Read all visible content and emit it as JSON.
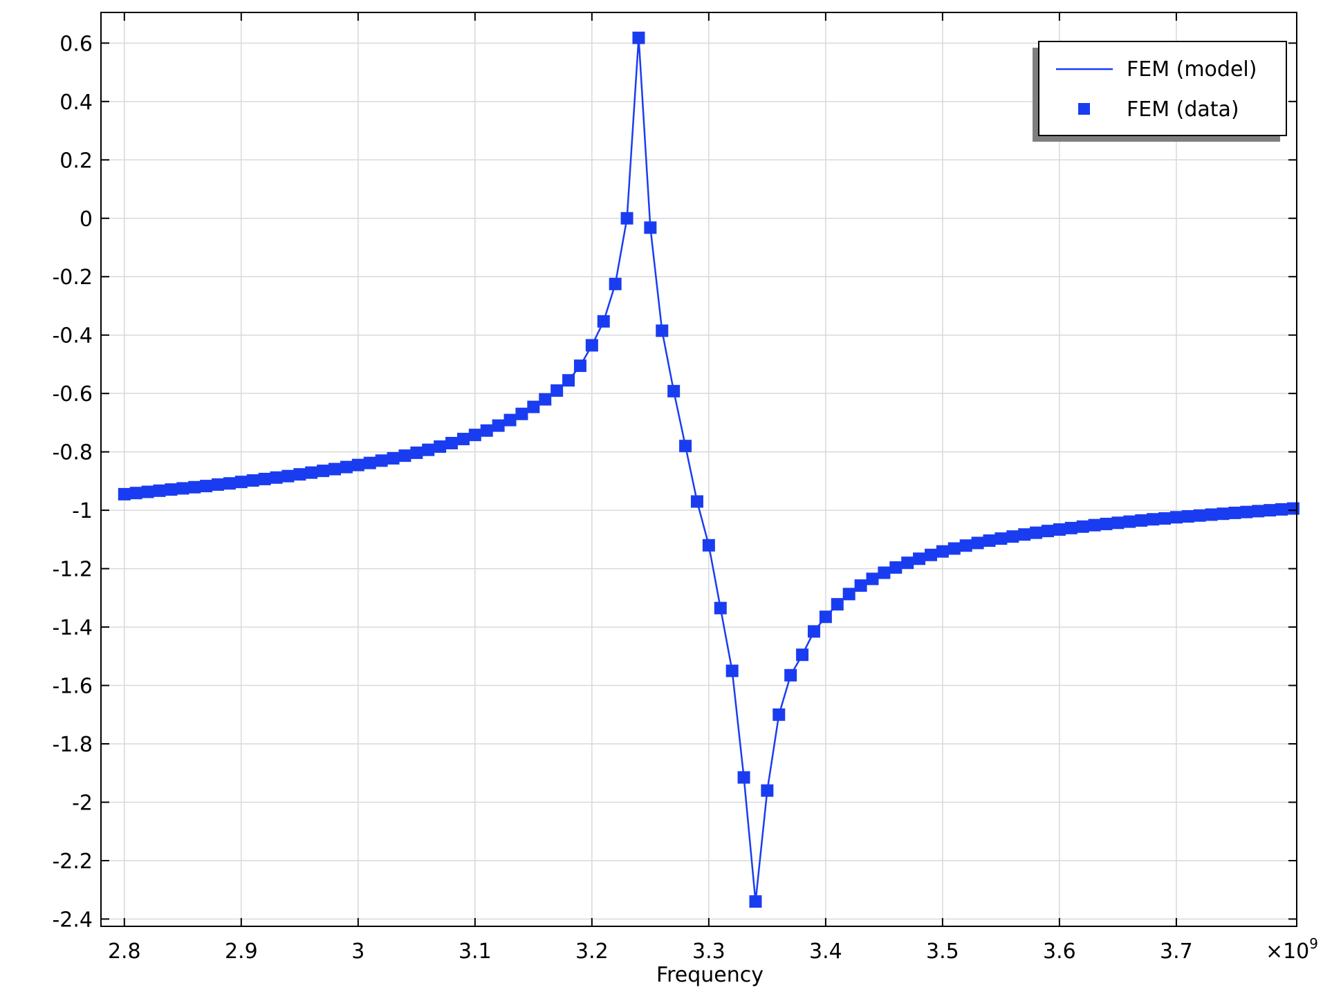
{
  "chart_data": {
    "type": "line",
    "title": "",
    "xlabel": "Frequency",
    "ylabel": "",
    "x_multiplier_label": "×10",
    "x_multiplier_exponent": "9",
    "xlim": [
      2.78,
      3.803
    ],
    "ylim": [
      -2.425,
      0.705
    ],
    "grid": true,
    "legend_position": "top-right",
    "x_ticks": [
      2.8,
      2.9,
      3.0,
      3.1,
      3.2,
      3.3,
      3.4,
      3.5,
      3.6,
      3.7
    ],
    "x_tick_labels": [
      "2.8",
      "2.9",
      "3",
      "3.1",
      "3.2",
      "3.3",
      "3.4",
      "3.5",
      "3.6",
      "3.7"
    ],
    "y_ticks": [
      0.6,
      0.4,
      0.2,
      0,
      -0.2,
      -0.4,
      -0.6,
      -0.8,
      -1,
      -1.2,
      -1.4,
      -1.6,
      -1.8,
      -2,
      -2.2,
      -2.4
    ],
    "y_tick_labels": [
      "0.6",
      "0.4",
      "0.2",
      "0",
      "-0.2",
      "-0.4",
      "-0.6",
      "-0.8",
      "-1",
      "-1.2",
      "-1.4",
      "-1.6",
      "-1.8",
      "-2",
      "-2.2",
      "-2.4"
    ],
    "colors": {
      "series": "#1a3cf0",
      "grid": "#d9d9d9",
      "axis": "#000000",
      "legend_shadow": "#7f7f7f"
    },
    "series": [
      {
        "name": "FEM (model)",
        "style": "line"
      },
      {
        "name": "FEM (data)",
        "style": "square-markers"
      }
    ],
    "x": [
      2.8,
      2.81,
      2.82,
      2.83,
      2.84,
      2.85,
      2.86,
      2.87,
      2.88,
      2.89,
      2.9,
      2.91,
      2.92,
      2.93,
      2.94,
      2.95,
      2.96,
      2.97,
      2.98,
      2.99,
      3.0,
      3.01,
      3.02,
      3.03,
      3.04,
      3.05,
      3.06,
      3.07,
      3.08,
      3.09,
      3.1,
      3.11,
      3.12,
      3.13,
      3.14,
      3.15,
      3.16,
      3.17,
      3.18,
      3.19,
      3.2,
      3.21,
      3.22,
      3.23,
      3.24,
      3.25,
      3.26,
      3.27,
      3.28,
      3.29,
      3.3,
      3.31,
      3.32,
      3.33,
      3.34,
      3.35,
      3.36,
      3.37,
      3.38,
      3.39,
      3.4,
      3.41,
      3.42,
      3.43,
      3.44,
      3.45,
      3.46,
      3.47,
      3.48,
      3.49,
      3.5,
      3.51,
      3.52,
      3.53,
      3.54,
      3.55,
      3.56,
      3.57,
      3.58,
      3.59,
      3.6,
      3.61,
      3.62,
      3.63,
      3.64,
      3.65,
      3.66,
      3.67,
      3.68,
      3.69,
      3.7,
      3.71,
      3.72,
      3.73,
      3.74,
      3.75,
      3.76,
      3.77,
      3.78,
      3.79,
      3.8
    ],
    "y": [
      -0.945,
      -0.941,
      -0.937,
      -0.933,
      -0.929,
      -0.925,
      -0.921,
      -0.917,
      -0.912,
      -0.908,
      -0.903,
      -0.898,
      -0.893,
      -0.888,
      -0.883,
      -0.877,
      -0.871,
      -0.865,
      -0.859,
      -0.852,
      -0.845,
      -0.838,
      -0.83,
      -0.822,
      -0.813,
      -0.803,
      -0.793,
      -0.782,
      -0.77,
      -0.756,
      -0.742,
      -0.727,
      -0.71,
      -0.691,
      -0.67,
      -0.646,
      -0.62,
      -0.59,
      -0.555,
      -0.505,
      -0.435,
      -0.353,
      -0.225,
      0.0,
      0.618,
      -0.032,
      -0.385,
      -0.592,
      -0.78,
      -0.97,
      -1.12,
      -1.335,
      -1.55,
      -1.915,
      -2.34,
      -1.96,
      -1.7,
      -1.565,
      -1.495,
      -1.415,
      -1.365,
      -1.322,
      -1.287,
      -1.258,
      -1.235,
      -1.214,
      -1.196,
      -1.18,
      -1.166,
      -1.153,
      -1.141,
      -1.131,
      -1.121,
      -1.112,
      -1.104,
      -1.097,
      -1.09,
      -1.083,
      -1.077,
      -1.071,
      -1.066,
      -1.061,
      -1.056,
      -1.051,
      -1.047,
      -1.043,
      -1.039,
      -1.035,
      -1.031,
      -1.028,
      -1.024,
      -1.021,
      -1.018,
      -1.015,
      -1.012,
      -1.009,
      -1.006,
      -1.003,
      -1.0,
      -0.997,
      -0.994
    ]
  }
}
